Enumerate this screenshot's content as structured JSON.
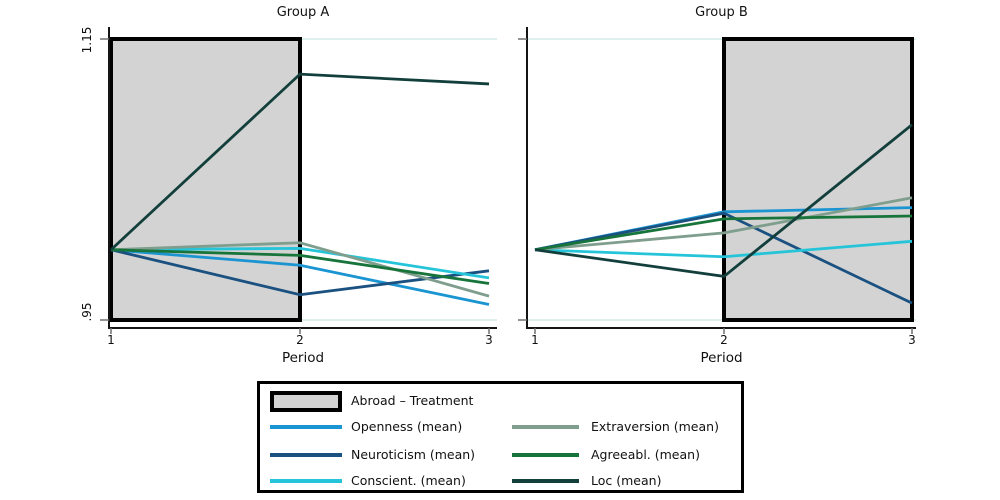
{
  "figure": {
    "titles": {
      "panel_a": "Group A",
      "panel_b": "Group B"
    },
    "x_axis_label": "Period",
    "x_tick_labels": [
      "1",
      "2",
      "3"
    ],
    "y_tick_labels": {
      "top": "1.15",
      "bottom": ".95"
    }
  },
  "colors": {
    "axis": "#141414",
    "tick": "#6f6f6f",
    "gridline": "#d9eeec",
    "band_fill": "#d3d3d3",
    "band_border": "#000000",
    "openness": "#1b95d2",
    "neuroticism": "#1a5180",
    "conscientiousness": "#25c4d9",
    "extraversion": "#7f9e8d",
    "agreeableness": "#17743a",
    "loc": "#123f3b"
  },
  "legend": {
    "items": [
      {
        "label": "Abroad – Treatment",
        "swatch": "box",
        "color": "#d3d3d3"
      },
      {
        "label": "Openness (mean)",
        "swatch": "line",
        "color": "#1b95d2"
      },
      {
        "label": "Neuroticism (mean)",
        "swatch": "line",
        "color": "#1a5180"
      },
      {
        "label": "Conscient. (mean)",
        "swatch": "line",
        "color": "#25c4d9"
      },
      {
        "label": "Extraversion (mean)",
        "swatch": "line",
        "color": "#7f9e8d"
      },
      {
        "label": "Agreeabl. (mean)",
        "swatch": "line",
        "color": "#17743a"
      },
      {
        "label": "Loc (mean)",
        "swatch": "line",
        "color": "#123f3b"
      }
    ]
  },
  "chart_data": {
    "type": "line",
    "x": [
      1,
      2,
      3
    ],
    "xlabel": "Period",
    "ylim": [
      0.95,
      1.15
    ],
    "yticks": [
      0.95,
      1.15
    ],
    "grid": "horizontal-at-yticks-only",
    "legend_position": "bottom-center",
    "band_label": "Abroad – Treatment",
    "band_fill": "#d3d3d3",
    "panels": [
      {
        "title": "Group A",
        "treatment_band_x": [
          1,
          2
        ],
        "series": [
          {
            "name": "Openness (mean)",
            "color": "#1b95d2",
            "values": [
              1.0,
              0.989,
              0.961
            ]
          },
          {
            "name": "Neuroticism (mean)",
            "color": "#1a5180",
            "values": [
              1.0,
              0.968,
              0.985
            ]
          },
          {
            "name": "Conscient. (mean)",
            "color": "#25c4d9",
            "values": [
              1.0,
              1.001,
              0.98
            ]
          },
          {
            "name": "Extraversion (mean)",
            "color": "#7f9e8d",
            "values": [
              1.0,
              1.005,
              0.967
            ]
          },
          {
            "name": "Agreeabl. (mean)",
            "color": "#17743a",
            "values": [
              1.0,
              0.996,
              0.976
            ]
          },
          {
            "name": "Loc (mean)",
            "color": "#123f3b",
            "values": [
              1.0,
              1.125,
              1.118
            ]
          }
        ]
      },
      {
        "title": "Group B",
        "treatment_band_x": [
          2,
          3
        ],
        "series": [
          {
            "name": "Openness (mean)",
            "color": "#1b95d2",
            "values": [
              1.0,
              1.027,
              1.03
            ]
          },
          {
            "name": "Neuroticism (mean)",
            "color": "#1a5180",
            "values": [
              1.0,
              1.026,
              0.962
            ]
          },
          {
            "name": "Conscient. (mean)",
            "color": "#25c4d9",
            "values": [
              1.0,
              0.995,
              1.006
            ]
          },
          {
            "name": "Extraversion (mean)",
            "color": "#7f9e8d",
            "values": [
              1.0,
              1.012,
              1.037
            ]
          },
          {
            "name": "Agreeabl. (mean)",
            "color": "#17743a",
            "values": [
              1.0,
              1.022,
              1.024
            ]
          },
          {
            "name": "Loc (mean)",
            "color": "#123f3b",
            "values": [
              1.0,
              0.981,
              1.089
            ]
          }
        ]
      }
    ]
  }
}
